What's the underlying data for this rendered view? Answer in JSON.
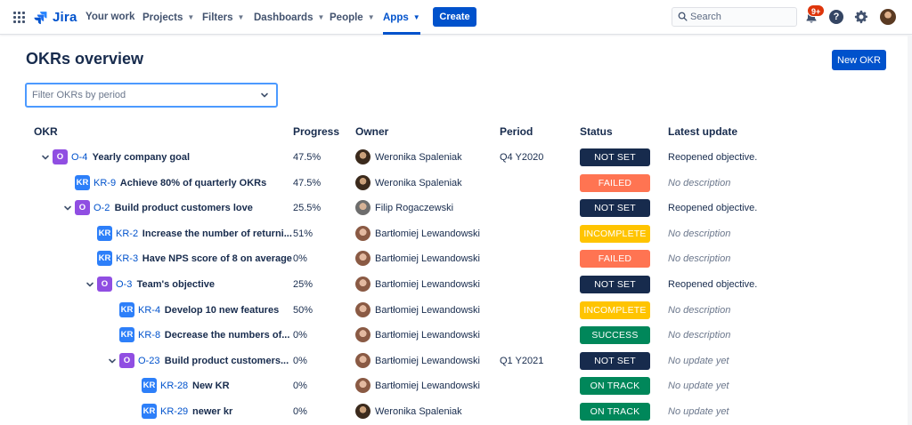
{
  "nav": {
    "logo_text": "Jira",
    "items": [
      {
        "label": "Your work",
        "dropdown": false
      },
      {
        "label": "Projects",
        "dropdown": true
      },
      {
        "label": "Filters",
        "dropdown": true
      },
      {
        "label": "Dashboards",
        "dropdown": true
      },
      {
        "label": "People",
        "dropdown": true
      },
      {
        "label": "Apps",
        "dropdown": true,
        "active": true
      }
    ],
    "create_label": "Create",
    "search_placeholder": "Search",
    "notifications_badge": "9+",
    "help_glyph": "?"
  },
  "page": {
    "title": "OKRs overview",
    "new_button": "New OKR",
    "filter_placeholder": "Filter OKRs by period"
  },
  "table": {
    "headers": {
      "okr": "OKR",
      "progress": "Progress",
      "owner": "Owner",
      "period": "Period",
      "status": "Status",
      "update": "Latest update"
    },
    "rows": [
      {
        "depth": 0,
        "type": "objective",
        "icon": "O",
        "key": "O-4",
        "title": "Yearly company goal",
        "expanded": true,
        "progress": "47.5%",
        "owner": "Weronika Spaleniak",
        "avatar": "wer",
        "period": "Q4 Y2020",
        "status": "NOT SET",
        "status_kind": "notset",
        "update": "Reopened objective.",
        "update_muted": false
      },
      {
        "depth": 1,
        "type": "kr",
        "icon": "KR",
        "key": "KR-9",
        "title": "Achieve 80% of quarterly OKRs",
        "progress": "47.5%",
        "owner": "Weronika Spaleniak",
        "avatar": "wer",
        "period": "",
        "status": "FAILED",
        "status_kind": "failed",
        "update": "No description",
        "update_muted": true
      },
      {
        "depth": 1,
        "type": "objective",
        "icon": "O",
        "key": "O-2",
        "title": "Build product customers love",
        "expanded": true,
        "progress": "25.5%",
        "owner": "Filip Rogaczewski",
        "avatar": "fil",
        "period": "",
        "status": "NOT SET",
        "status_kind": "notset",
        "update": "Reopened objective.",
        "update_muted": false
      },
      {
        "depth": 2,
        "type": "kr",
        "icon": "KR",
        "key": "KR-2",
        "title": "Increase the number of returni...",
        "progress": "51%",
        "owner": "Bartłomiej Lewandowski",
        "avatar": "bar",
        "period": "",
        "status": "INCOMPLETE",
        "status_kind": "incomplete",
        "update": "No description",
        "update_muted": true
      },
      {
        "depth": 2,
        "type": "kr",
        "icon": "KR",
        "key": "KR-3",
        "title": "Have NPS score of 8 on average",
        "progress": "0%",
        "owner": "Bartłomiej Lewandowski",
        "avatar": "bar",
        "period": "",
        "status": "FAILED",
        "status_kind": "failed",
        "update": "No description",
        "update_muted": true
      },
      {
        "depth": 2,
        "type": "objective",
        "icon": "O",
        "key": "O-3",
        "title": "Team's objective",
        "expanded": true,
        "progress": "25%",
        "owner": "Bartłomiej Lewandowski",
        "avatar": "bar",
        "period": "",
        "status": "NOT SET",
        "status_kind": "notset",
        "update": "Reopened objective.",
        "update_muted": false
      },
      {
        "depth": 3,
        "type": "kr",
        "icon": "KR",
        "key": "KR-4",
        "title": "Develop 10 new features",
        "progress": "50%",
        "owner": "Bartłomiej Lewandowski",
        "avatar": "bar",
        "period": "",
        "status": "INCOMPLETE",
        "status_kind": "incomplete",
        "update": "No description",
        "update_muted": true
      },
      {
        "depth": 3,
        "type": "kr",
        "icon": "KR",
        "key": "KR-8",
        "title": "Decrease the numbers of...",
        "progress": "0%",
        "owner": "Bartłomiej Lewandowski",
        "avatar": "bar",
        "period": "",
        "status": "SUCCESS",
        "status_kind": "success",
        "update": "No description",
        "update_muted": true
      },
      {
        "depth": 3,
        "type": "objective",
        "icon": "O",
        "key": "O-23",
        "title": "Build product customers...",
        "expanded": true,
        "progress": "0%",
        "owner": "Bartłomiej Lewandowski",
        "avatar": "bar",
        "period": "Q1 Y2021",
        "status": "NOT SET",
        "status_kind": "notset",
        "update": "No update yet",
        "update_muted": true
      },
      {
        "depth": 4,
        "type": "kr",
        "icon": "KR",
        "key": "KR-28",
        "title": "New KR",
        "progress": "0%",
        "owner": "Bartłomiej Lewandowski",
        "avatar": "bar",
        "period": "",
        "status": "ON TRACK",
        "status_kind": "success",
        "update": "No update yet",
        "update_muted": true
      },
      {
        "depth": 4,
        "type": "kr",
        "icon": "KR",
        "key": "KR-29",
        "title": "newer kr",
        "progress": "0%",
        "owner": "Weronika Spaleniak",
        "avatar": "wer",
        "period": "",
        "status": "ON TRACK",
        "status_kind": "success",
        "update": "No update yet",
        "update_muted": true
      }
    ]
  },
  "colors": {
    "brand": "#0052cc",
    "objective_icon": "#904ee2",
    "kr_icon": "#2d7ff9",
    "not_set": "#172b4d",
    "failed": "#ff7452",
    "incomplete": "#ffc400",
    "success": "#00875a"
  }
}
